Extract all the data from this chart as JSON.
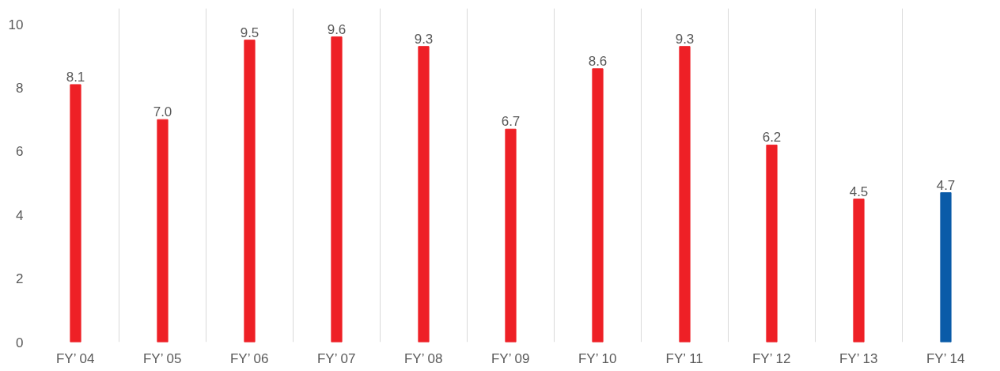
{
  "chart_data": {
    "type": "bar",
    "categories": [
      "FY’ 04",
      "FY’ 05",
      "FY’ 06",
      "FY’ 07",
      "FY’ 08",
      "FY’ 09",
      "FY’ 10",
      "FY’ 11",
      "FY’ 12",
      "FY’ 13",
      "FY’ 14"
    ],
    "values": [
      8.1,
      7.0,
      9.5,
      9.6,
      9.3,
      6.7,
      8.6,
      9.3,
      6.2,
      4.5,
      4.7
    ],
    "colors": [
      "#ee2026",
      "#ee2026",
      "#ee2026",
      "#ee2026",
      "#ee2026",
      "#ee2026",
      "#ee2026",
      "#ee2026",
      "#ee2026",
      "#ee2026",
      "#0a5ba8"
    ],
    "value_labels": [
      "8.1",
      "7.0",
      "9.5",
      "9.6",
      "9.3",
      "6.7",
      "8.6",
      "9.3",
      "6.2",
      "4.5",
      "4.7"
    ],
    "ylim": [
      0,
      10.5
    ],
    "yticks": [
      0,
      2,
      4,
      6,
      8,
      10
    ],
    "grid": "x"
  }
}
